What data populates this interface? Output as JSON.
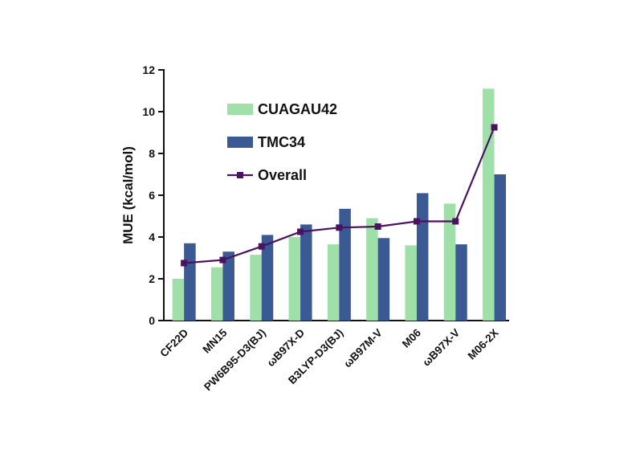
{
  "chart_data": {
    "type": "bar",
    "title": "",
    "xlabel": "",
    "ylabel": "MUE (kcal/mol)",
    "ylim": [
      0,
      12
    ],
    "yticks": [
      0,
      2,
      4,
      6,
      8,
      10,
      12
    ],
    "grid": false,
    "legend_position": "top-left",
    "categories": [
      "CF22D",
      "MN15",
      "PW6B95-D3(BJ)",
      "ωB97X-D",
      "B3LYP-D3(BJ)",
      "ωB97M-V",
      "M06",
      "ωB97X-V",
      "M06-2X"
    ],
    "series": [
      {
        "name": "CUAGAU42",
        "kind": "bar",
        "color": "#9ee0a7",
        "values": [
          2.0,
          2.55,
          3.15,
          4.0,
          3.65,
          4.9,
          3.6,
          5.6,
          11.1
        ]
      },
      {
        "name": "TMC34",
        "kind": "bar",
        "color": "#3b5a93",
        "values": [
          3.7,
          3.3,
          4.1,
          4.6,
          5.35,
          3.95,
          6.1,
          3.65,
          7.0
        ]
      },
      {
        "name": "Overall",
        "kind": "line",
        "color": "#4a1260",
        "values": [
          2.75,
          2.9,
          3.55,
          4.25,
          4.45,
          4.5,
          4.75,
          4.75,
          9.25
        ]
      }
    ]
  }
}
